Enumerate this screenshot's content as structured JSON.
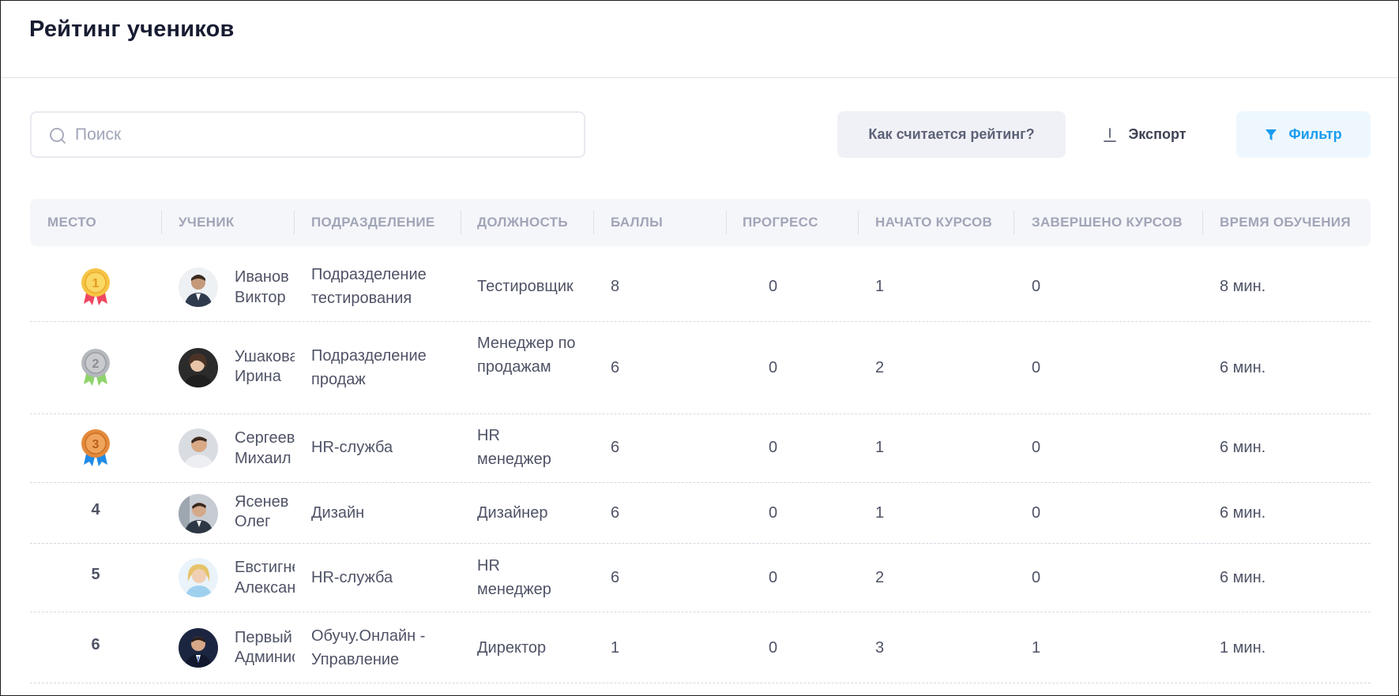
{
  "page": {
    "title": "Рейтинг учеников"
  },
  "search": {
    "placeholder": "Поиск"
  },
  "toolbar": {
    "rating_label": "Как считается рейтинг?",
    "export_label": "Экспорт",
    "filter_label": "Фильтр"
  },
  "table": {
    "columns": [
      "МЕСТО",
      "УЧЕНИК",
      "ПОДРАЗДЕЛЕНИЕ",
      "ДОЛЖНОСТЬ",
      "БАЛЛЫ",
      "ПРОГРЕСС",
      "НАЧАТО КУРСОВ",
      "ЗАВЕРШЕНО КУРСОВ",
      "ВРЕМЯ ОБУЧЕНИЯ"
    ],
    "rows": [
      {
        "place": "1",
        "medal": "gold",
        "last": "Иванов",
        "first": "Виктор",
        "dept": "Подразделение тестирования",
        "position": "Тестировщик",
        "score": "8",
        "progress": "0",
        "started": "1",
        "completed": "0",
        "time": "8 мин."
      },
      {
        "place": "2",
        "medal": "silver",
        "last": "Ушакова",
        "first": "Ирина",
        "dept": "Подразделение продаж",
        "position": "Менеджер по продажам",
        "score": "6",
        "progress": "0",
        "started": "2",
        "completed": "0",
        "time": "6 мин."
      },
      {
        "place": "3",
        "medal": "bronze",
        "last": "Сергеев",
        "first": "Михаил",
        "dept": "HR-служба",
        "position": "HR менеджер",
        "score": "6",
        "progress": "0",
        "started": "1",
        "completed": "0",
        "time": "6 мин."
      },
      {
        "place": "4",
        "medal": "",
        "last": "Ясенев",
        "first": "Олег",
        "dept": "Дизайн",
        "position": "Дизайнер",
        "score": "6",
        "progress": "0",
        "started": "1",
        "completed": "0",
        "time": "6 мин."
      },
      {
        "place": "5",
        "medal": "",
        "last": "Евстигнеева",
        "first": "Александра",
        "dept": "HR-служба",
        "position": "HR менеджер",
        "score": "6",
        "progress": "0",
        "started": "2",
        "completed": "0",
        "time": "6 мин."
      },
      {
        "place": "6",
        "medal": "",
        "last": "Первый",
        "first": "Администратор",
        "dept": "Обучу.Онлайн - Управление",
        "position": "Директор",
        "score": "1",
        "progress": "0",
        "started": "3",
        "completed": "1",
        "time": "1 мин."
      }
    ]
  },
  "colors": {
    "accent": "#1a9cf0",
    "gold": "#f6c445",
    "silver": "#b5b8bd",
    "bronze": "#e48a3c"
  }
}
